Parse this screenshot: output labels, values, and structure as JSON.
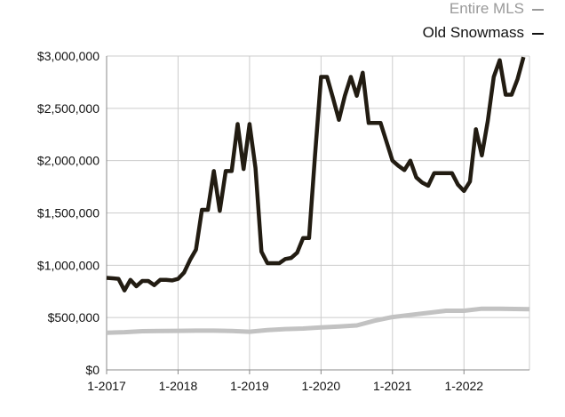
{
  "chart_data": {
    "type": "line",
    "legend_position": "top-right",
    "grid": true,
    "xlim": [
      "1-2017",
      "12-2022"
    ],
    "ylim": [
      0,
      3000000
    ],
    "y_ticks": [
      0,
      500000,
      1000000,
      1500000,
      2000000,
      2500000,
      3000000
    ],
    "y_tick_labels": [
      "$0",
      "$500,000",
      "$1,000,000",
      "$1,500,000",
      "$2,000,000",
      "$2,500,000",
      "$3,000,000"
    ],
    "x_tick_labels": [
      "1-2017",
      "1-2018",
      "1-2019",
      "1-2020",
      "1-2021",
      "1-2022"
    ],
    "colors": {
      "entire_mls": "#c2c2c2",
      "old_snowmass": "#221c12",
      "grid": "#cccccc",
      "axis": "#888888"
    },
    "series": [
      {
        "name": "Entire MLS",
        "color": "#c2c2c2",
        "points": [
          [
            "1-2017",
            355000
          ],
          [
            "4-2017",
            360000
          ],
          [
            "7-2017",
            370000
          ],
          [
            "10-2017",
            372000
          ],
          [
            "1-2018",
            373000
          ],
          [
            "4-2018",
            375000
          ],
          [
            "7-2018",
            375000
          ],
          [
            "10-2018",
            372000
          ],
          [
            "1-2019",
            365000
          ],
          [
            "4-2019",
            380000
          ],
          [
            "7-2019",
            390000
          ],
          [
            "10-2019",
            395000
          ],
          [
            "1-2020",
            405000
          ],
          [
            "4-2020",
            415000
          ],
          [
            "7-2020",
            425000
          ],
          [
            "10-2020",
            470000
          ],
          [
            "1-2021",
            505000
          ],
          [
            "4-2021",
            525000
          ],
          [
            "7-2021",
            545000
          ],
          [
            "10-2021",
            565000
          ],
          [
            "1-2022",
            565000
          ],
          [
            "4-2022",
            585000
          ],
          [
            "7-2022",
            585000
          ],
          [
            "12-2022",
            580000
          ]
        ]
      },
      {
        "name": "Old Snowmass",
        "color": "#221c12",
        "points": [
          [
            "1-2017",
            880000
          ],
          [
            "2-2017",
            875000
          ],
          [
            "3-2017",
            870000
          ],
          [
            "4-2017",
            760000
          ],
          [
            "5-2017",
            860000
          ],
          [
            "6-2017",
            800000
          ],
          [
            "7-2017",
            850000
          ],
          [
            "8-2017",
            850000
          ],
          [
            "9-2017",
            810000
          ],
          [
            "10-2017",
            860000
          ],
          [
            "11-2017",
            860000
          ],
          [
            "12-2017",
            855000
          ],
          [
            "1-2018",
            870000
          ],
          [
            "2-2018",
            930000
          ],
          [
            "3-2018",
            1050000
          ],
          [
            "4-2018",
            1150000
          ],
          [
            "5-2018",
            1530000
          ],
          [
            "6-2018",
            1530000
          ],
          [
            "7-2018",
            1900000
          ],
          [
            "8-2018",
            1520000
          ],
          [
            "9-2018",
            1900000
          ],
          [
            "10-2018",
            1900000
          ],
          [
            "11-2018",
            2350000
          ],
          [
            "12-2018",
            1920000
          ],
          [
            "1-2019",
            2350000
          ],
          [
            "2-2019",
            1930000
          ],
          [
            "3-2019",
            1130000
          ],
          [
            "4-2019",
            1020000
          ],
          [
            "5-2019",
            1020000
          ],
          [
            "6-2019",
            1020000
          ],
          [
            "7-2019",
            1060000
          ],
          [
            "8-2019",
            1070000
          ],
          [
            "9-2019",
            1120000
          ],
          [
            "10-2019",
            1260000
          ],
          [
            "11-2019",
            1260000
          ],
          [
            "12-2019",
            2050000
          ],
          [
            "1-2020",
            2800000
          ],
          [
            "2-2020",
            2800000
          ],
          [
            "3-2020",
            2600000
          ],
          [
            "4-2020",
            2390000
          ],
          [
            "5-2020",
            2620000
          ],
          [
            "6-2020",
            2800000
          ],
          [
            "7-2020",
            2620000
          ],
          [
            "8-2020",
            2840000
          ],
          [
            "9-2020",
            2360000
          ],
          [
            "10-2020",
            2360000
          ],
          [
            "11-2020",
            2360000
          ],
          [
            "12-2020",
            2180000
          ],
          [
            "1-2021",
            2000000
          ],
          [
            "2-2021",
            1950000
          ],
          [
            "3-2021",
            1910000
          ],
          [
            "4-2021",
            2000000
          ],
          [
            "5-2021",
            1840000
          ],
          [
            "6-2021",
            1790000
          ],
          [
            "7-2021",
            1760000
          ],
          [
            "8-2021",
            1880000
          ],
          [
            "9-2021",
            1880000
          ],
          [
            "10-2021",
            1880000
          ],
          [
            "11-2021",
            1880000
          ],
          [
            "12-2021",
            1770000
          ],
          [
            "1-2022",
            1710000
          ],
          [
            "2-2022",
            1800000
          ],
          [
            "3-2022",
            2300000
          ],
          [
            "4-2022",
            2050000
          ],
          [
            "5-2022",
            2380000
          ],
          [
            "6-2022",
            2800000
          ],
          [
            "7-2022",
            2960000
          ],
          [
            "8-2022",
            2630000
          ],
          [
            "9-2022",
            2630000
          ],
          [
            "10-2022",
            2780000
          ],
          [
            "11-2022",
            2990000
          ]
        ]
      }
    ]
  }
}
